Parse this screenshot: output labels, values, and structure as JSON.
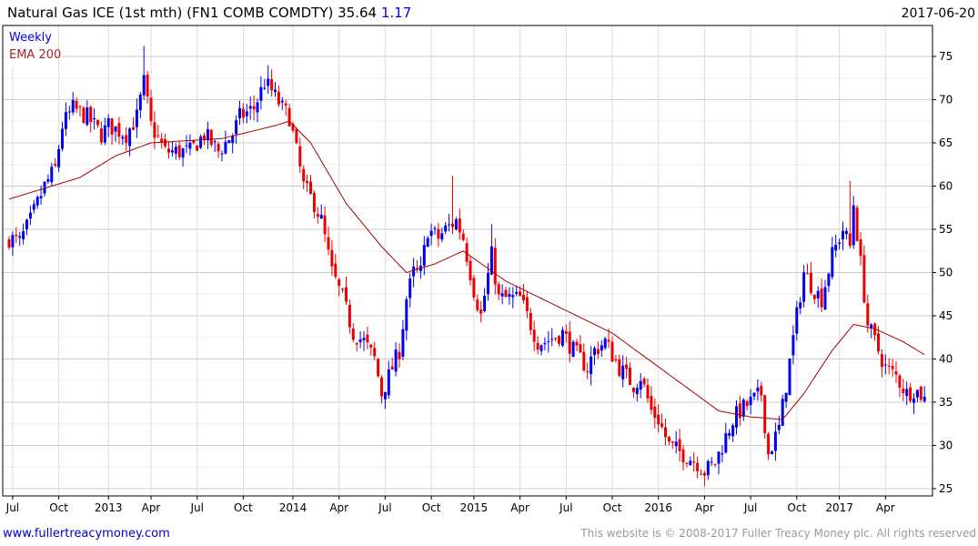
{
  "header": {
    "title": "Natural Gas ICE (1st mth) (FN1 COMB COMDTY) 35.64",
    "change": "1.17",
    "date": "2017-06-20"
  },
  "legend": {
    "period": "Weekly",
    "indicator": "EMA 200"
  },
  "footer": {
    "site": "www.fullertreacymoney.com",
    "copyright": "This website is © 2008-2017 Fuller Treacy Money plc. All rights reserved"
  },
  "colors": {
    "up": "#0000ee",
    "down": "#ee0000",
    "ema": "#aa0000",
    "grid": "#dddddd"
  },
  "chart_data": {
    "type": "candlestick",
    "title": "Natural Gas ICE (1st mth) (FN1 COMB COMDTY)",
    "x_unit": "weeks since 2012-06-25",
    "ylim": [
      25,
      77
    ],
    "yticks": [
      "25",
      "30",
      "35",
      "40",
      "45",
      "50",
      "55",
      "60",
      "65",
      "70",
      "75"
    ],
    "xticks": [
      {
        "w": 1,
        "label": "Jul"
      },
      {
        "w": 14,
        "label": "Oct"
      },
      {
        "w": 28,
        "label": "2013"
      },
      {
        "w": 40,
        "label": "Apr"
      },
      {
        "w": 53,
        "label": "Jul"
      },
      {
        "w": 66,
        "label": "Oct"
      },
      {
        "w": 80,
        "label": "2014"
      },
      {
        "w": 93,
        "label": "Apr"
      },
      {
        "w": 106,
        "label": "Jul"
      },
      {
        "w": 119,
        "label": "Oct"
      },
      {
        "w": 131,
        "label": "2015"
      },
      {
        "w": 144,
        "label": "Apr"
      },
      {
        "w": 157,
        "label": "Jul"
      },
      {
        "w": 170,
        "label": "Oct"
      },
      {
        "w": 183,
        "label": "2016"
      },
      {
        "w": 196,
        "label": "Apr"
      },
      {
        "w": 209,
        "label": "Jul"
      },
      {
        "w": 222,
        "label": "Oct"
      },
      {
        "w": 234,
        "label": "2017"
      },
      {
        "w": 247,
        "label": "Apr"
      }
    ],
    "close_anchors": [
      [
        0,
        54
      ],
      [
        3,
        53.5
      ],
      [
        6,
        56
      ],
      [
        10,
        60
      ],
      [
        13,
        62
      ],
      [
        15,
        67
      ],
      [
        18,
        69
      ],
      [
        22,
        68
      ],
      [
        26,
        66
      ],
      [
        28,
        67
      ],
      [
        33,
        66
      ],
      [
        36,
        68
      ],
      [
        38,
        72
      ],
      [
        40,
        67
      ],
      [
        44,
        64
      ],
      [
        47,
        64
      ],
      [
        51,
        64
      ],
      [
        55,
        66
      ],
      [
        59,
        64
      ],
      [
        63,
        66
      ],
      [
        65,
        68
      ],
      [
        69,
        69
      ],
      [
        72,
        72
      ],
      [
        74,
        71
      ],
      [
        77,
        69
      ],
      [
        79,
        68
      ],
      [
        81,
        64
      ],
      [
        83,
        60
      ],
      [
        86,
        58
      ],
      [
        88,
        56
      ],
      [
        91,
        50
      ],
      [
        94,
        47
      ],
      [
        97,
        43
      ],
      [
        100,
        42
      ],
      [
        103,
        40
      ],
      [
        105,
        36
      ],
      [
        108,
        39
      ],
      [
        110,
        41
      ],
      [
        112,
        47
      ],
      [
        114,
        50
      ],
      [
        116,
        50
      ],
      [
        118,
        55
      ],
      [
        121,
        54
      ],
      [
        123,
        55
      ],
      [
        126,
        56
      ],
      [
        128,
        54
      ],
      [
        131,
        48
      ],
      [
        133,
        45
      ],
      [
        136,
        52
      ],
      [
        138,
        47
      ],
      [
        141,
        47
      ],
      [
        144,
        47
      ],
      [
        146,
        45
      ],
      [
        149,
        42
      ],
      [
        151,
        42
      ],
      [
        156,
        43
      ],
      [
        159,
        41
      ],
      [
        163,
        39
      ],
      [
        165,
        41
      ],
      [
        168,
        42
      ],
      [
        172,
        39
      ],
      [
        176,
        37
      ],
      [
        178,
        38
      ],
      [
        181,
        34
      ],
      [
        183,
        33
      ],
      [
        186,
        30
      ],
      [
        190,
        29
      ],
      [
        194,
        28
      ],
      [
        196,
        27
      ],
      [
        199,
        28
      ],
      [
        201,
        30
      ],
      [
        204,
        33
      ],
      [
        206,
        34
      ],
      [
        209,
        35
      ],
      [
        212,
        36
      ],
      [
        214,
        29
      ],
      [
        217,
        32
      ],
      [
        219,
        37
      ],
      [
        222,
        45
      ],
      [
        224,
        50
      ],
      [
        227,
        48
      ],
      [
        229,
        47
      ],
      [
        232,
        52
      ],
      [
        235,
        55
      ],
      [
        237,
        53
      ],
      [
        238,
        58
      ],
      [
        240,
        51
      ],
      [
        242,
        44
      ],
      [
        245,
        41
      ],
      [
        247,
        39
      ],
      [
        250,
        38
      ],
      [
        253,
        36
      ],
      [
        255,
        36.5
      ],
      [
        258,
        35.64
      ]
    ],
    "notable_highs": [
      [
        38,
        76.2
      ],
      [
        73,
        74
      ],
      [
        125,
        61.2
      ],
      [
        136,
        55.6
      ],
      [
        237,
        60.6
      ]
    ],
    "ema_200": [
      [
        0,
        58.5
      ],
      [
        20,
        61
      ],
      [
        30,
        63.5
      ],
      [
        40,
        65
      ],
      [
        60,
        65.5
      ],
      [
        75,
        67
      ],
      [
        79,
        67.5
      ],
      [
        85,
        65
      ],
      [
        95,
        58
      ],
      [
        105,
        53
      ],
      [
        112,
        50
      ],
      [
        120,
        51
      ],
      [
        128,
        52.5
      ],
      [
        140,
        49
      ],
      [
        155,
        46
      ],
      [
        170,
        43
      ],
      [
        180,
        40
      ],
      [
        190,
        37
      ],
      [
        200,
        34
      ],
      [
        209,
        33.3
      ],
      [
        218,
        33
      ],
      [
        224,
        36
      ],
      [
        232,
        41
      ],
      [
        238,
        44
      ],
      [
        244,
        43.5
      ],
      [
        252,
        42
      ],
      [
        258,
        40.5
      ]
    ]
  }
}
